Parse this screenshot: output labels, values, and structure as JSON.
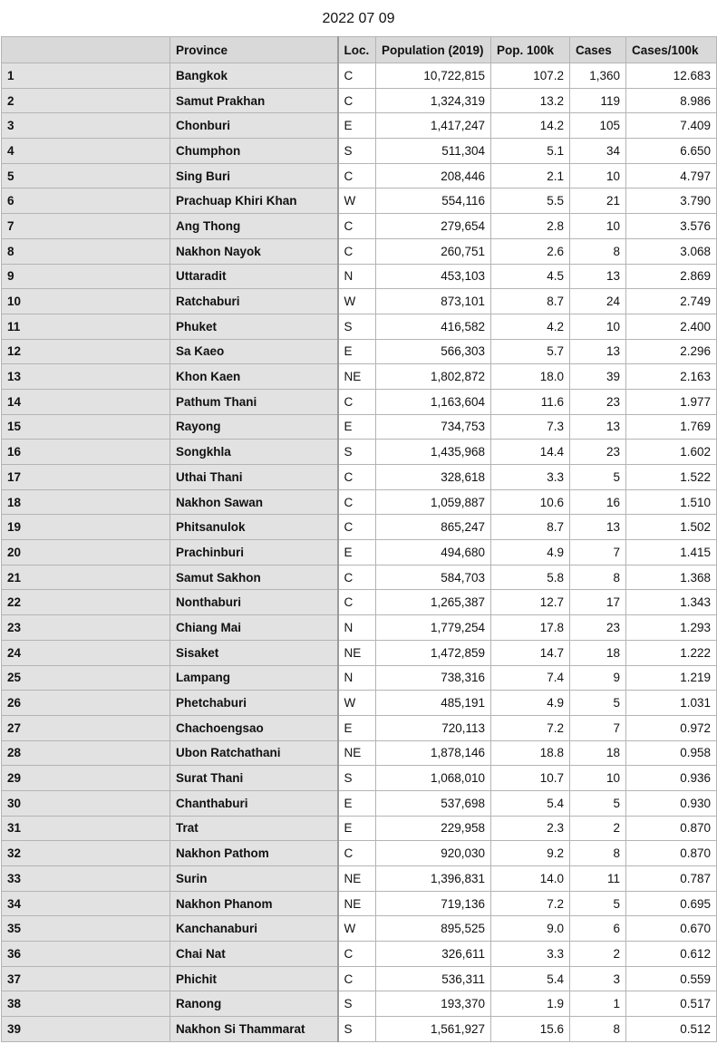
{
  "title": "2022 07 09",
  "table": {
    "headers": [
      "",
      "Province",
      "Loc.",
      "Population (2019)",
      "Pop. 100k",
      "Cases",
      "Cases/100k"
    ],
    "rows": [
      [
        "1",
        "Bangkok",
        "C",
        "10,722,815",
        "107.2",
        "1,360",
        "12.683"
      ],
      [
        "2",
        "Samut Prakhan",
        "C",
        "1,324,319",
        "13.2",
        "119",
        "8.986"
      ],
      [
        "3",
        "Chonburi",
        "E",
        "1,417,247",
        "14.2",
        "105",
        "7.409"
      ],
      [
        "4",
        "Chumphon",
        "S",
        "511,304",
        "5.1",
        "34",
        "6.650"
      ],
      [
        "5",
        "Sing Buri",
        "C",
        "208,446",
        "2.1",
        "10",
        "4.797"
      ],
      [
        "6",
        "Prachuap Khiri Khan",
        "W",
        "554,116",
        "5.5",
        "21",
        "3.790"
      ],
      [
        "7",
        "Ang Thong",
        "C",
        "279,654",
        "2.8",
        "10",
        "3.576"
      ],
      [
        "8",
        "Nakhon Nayok",
        "C",
        "260,751",
        "2.6",
        "8",
        "3.068"
      ],
      [
        "9",
        "Uttaradit",
        "N",
        "453,103",
        "4.5",
        "13",
        "2.869"
      ],
      [
        "10",
        "Ratchaburi",
        "W",
        "873,101",
        "8.7",
        "24",
        "2.749"
      ],
      [
        "11",
        "Phuket",
        "S",
        "416,582",
        "4.2",
        "10",
        "2.400"
      ],
      [
        "12",
        "Sa Kaeo",
        "E",
        "566,303",
        "5.7",
        "13",
        "2.296"
      ],
      [
        "13",
        "Khon Kaen",
        "NE",
        "1,802,872",
        "18.0",
        "39",
        "2.163"
      ],
      [
        "14",
        "Pathum Thani",
        "C",
        "1,163,604",
        "11.6",
        "23",
        "1.977"
      ],
      [
        "15",
        "Rayong",
        "E",
        "734,753",
        "7.3",
        "13",
        "1.769"
      ],
      [
        "16",
        "Songkhla",
        "S",
        "1,435,968",
        "14.4",
        "23",
        "1.602"
      ],
      [
        "17",
        "Uthai Thani",
        "C",
        "328,618",
        "3.3",
        "5",
        "1.522"
      ],
      [
        "18",
        "Nakhon Sawan",
        "C",
        "1,059,887",
        "10.6",
        "16",
        "1.510"
      ],
      [
        "19",
        "Phitsanulok",
        "C",
        "865,247",
        "8.7",
        "13",
        "1.502"
      ],
      [
        "20",
        "Prachinburi",
        "E",
        "494,680",
        "4.9",
        "7",
        "1.415"
      ],
      [
        "21",
        "Samut Sakhon",
        "C",
        "584,703",
        "5.8",
        "8",
        "1.368"
      ],
      [
        "22",
        "Nonthaburi",
        "C",
        "1,265,387",
        "12.7",
        "17",
        "1.343"
      ],
      [
        "23",
        "Chiang Mai",
        "N",
        "1,779,254",
        "17.8",
        "23",
        "1.293"
      ],
      [
        "24",
        "Sisaket",
        "NE",
        "1,472,859",
        "14.7",
        "18",
        "1.222"
      ],
      [
        "25",
        "Lampang",
        "N",
        "738,316",
        "7.4",
        "9",
        "1.219"
      ],
      [
        "26",
        "Phetchaburi",
        "W",
        "485,191",
        "4.9",
        "5",
        "1.031"
      ],
      [
        "27",
        "Chachoengsao",
        "E",
        "720,113",
        "7.2",
        "7",
        "0.972"
      ],
      [
        "28",
        "Ubon Ratchathani",
        "NE",
        "1,878,146",
        "18.8",
        "18",
        "0.958"
      ],
      [
        "29",
        "Surat Thani",
        "S",
        "1,068,010",
        "10.7",
        "10",
        "0.936"
      ],
      [
        "30",
        "Chanthaburi",
        "E",
        "537,698",
        "5.4",
        "5",
        "0.930"
      ],
      [
        "31",
        "Trat",
        "E",
        "229,958",
        "2.3",
        "2",
        "0.870"
      ],
      [
        "32",
        "Nakhon Pathom",
        "C",
        "920,030",
        "9.2",
        "8",
        "0.870"
      ],
      [
        "33",
        "Surin",
        "NE",
        "1,396,831",
        "14.0",
        "11",
        "0.787"
      ],
      [
        "34",
        "Nakhon Phanom",
        "NE",
        "719,136",
        "7.2",
        "5",
        "0.695"
      ],
      [
        "35",
        "Kanchanaburi",
        "W",
        "895,525",
        "9.0",
        "6",
        "0.670"
      ],
      [
        "36",
        "Chai Nat",
        "C",
        "326,611",
        "3.3",
        "2",
        "0.612"
      ],
      [
        "37",
        "Phichit",
        "C",
        "536,311",
        "5.4",
        "3",
        "0.559"
      ],
      [
        "38",
        "Ranong",
        "S",
        "193,370",
        "1.9",
        "1",
        "0.517"
      ],
      [
        "39",
        "Nakhon Si Thammarat",
        "S",
        "1,561,927",
        "15.6",
        "8",
        "0.512"
      ]
    ]
  }
}
